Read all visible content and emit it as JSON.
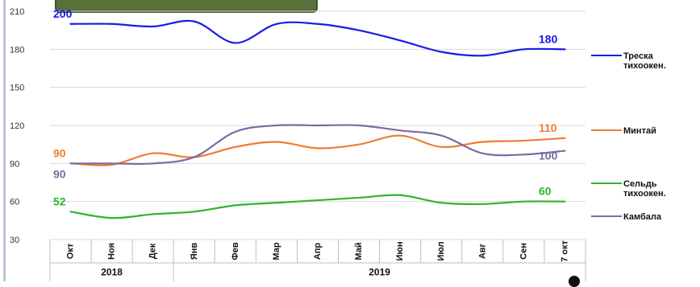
{
  "chart_data": {
    "type": "line",
    "ylim": [
      30,
      210
    ],
    "yticks": [
      30,
      60,
      90,
      120,
      150,
      180,
      210
    ],
    "categories": [
      "Окт",
      "Ноя",
      "Дек",
      "Янв",
      "Фев",
      "Мар",
      "Апр",
      "Май",
      "Июн",
      "Июл",
      "Авг",
      "Сен",
      "7 окт"
    ],
    "year_groups": [
      {
        "label": "2018",
        "start": 0,
        "end": 2
      },
      {
        "label": "2019",
        "start": 3,
        "end": 12
      }
    ],
    "series": [
      {
        "name": "Треска тихоокен.",
        "legend_lines": [
          "Треска",
          "тихоокен."
        ],
        "color": "#1a1ae6",
        "values": [
          200,
          200,
          198,
          202,
          185,
          200,
          200,
          195,
          187,
          178,
          175,
          180,
          180
        ],
        "labels": [
          {
            "index": 0,
            "text": "200"
          },
          {
            "index": 12,
            "text": "180"
          }
        ]
      },
      {
        "name": "Минтай",
        "legend_lines": [
          "Минтай"
        ],
        "color": "#ed7d31",
        "values": [
          90,
          89,
          98,
          95,
          103,
          107,
          102,
          105,
          112,
          103,
          107,
          108,
          110
        ],
        "labels": [
          {
            "index": 0,
            "text": "90"
          },
          {
            "index": 12,
            "text": "110"
          }
        ]
      },
      {
        "name": "Сельдь тихоокен.",
        "legend_lines": [
          "Сельдь",
          "тихоокен."
        ],
        "color": "#2db52d",
        "values": [
          52,
          47,
          50,
          52,
          57,
          59,
          61,
          63,
          65,
          59,
          58,
          60,
          60
        ],
        "labels": [
          {
            "index": 0,
            "text": "52"
          },
          {
            "index": 12,
            "text": "60"
          }
        ]
      },
      {
        "name": "Камбала",
        "legend_lines": [
          "Камбала"
        ],
        "color": "#7b6ba1",
        "values": [
          90,
          90,
          90,
          95,
          115,
          120,
          120,
          120,
          116,
          112,
          98,
          97,
          100
        ],
        "labels": [
          {
            "index": 0,
            "text": "90"
          },
          {
            "index": 12,
            "text": "100"
          }
        ]
      }
    ]
  }
}
